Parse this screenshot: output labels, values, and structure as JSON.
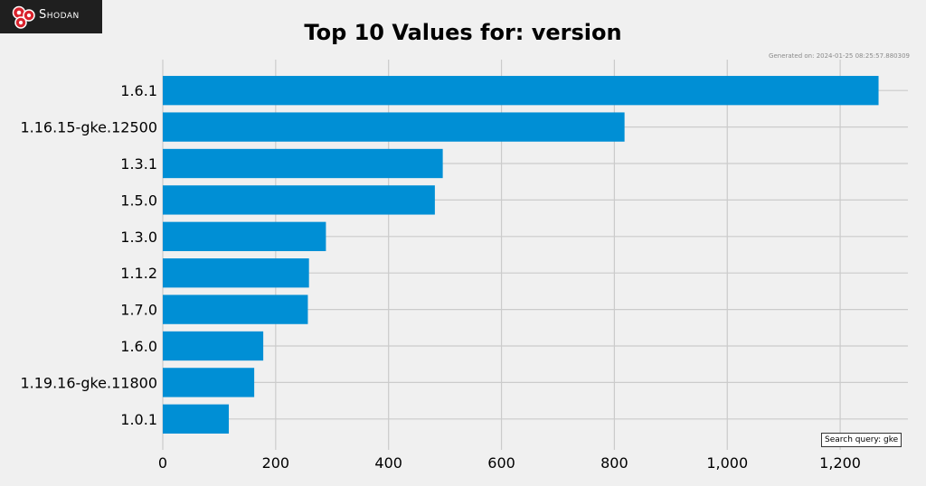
{
  "brand": {
    "name": "Shodan",
    "logo_icon": "shodan-logo-icon"
  },
  "generated_text": "Generated on: 2024-01-25 08:25:57.880309",
  "search_query_text": "Search query: gke",
  "colors": {
    "bar": "#008fd5",
    "background": "#f0f0f0",
    "grid": "#cbcbcb",
    "logo_bg": "#1f1f1f",
    "logo_red": "#d9232d"
  },
  "chart_data": {
    "type": "bar",
    "orientation": "horizontal",
    "title": "Top 10 Values for: version",
    "xlabel": "",
    "ylabel": "",
    "categories": [
      "1.6.1",
      "1.16.15-gke.12500",
      "1.3.1",
      "1.5.0",
      "1.3.0",
      "1.1.2",
      "1.7.0",
      "1.6.0",
      "1.19.16-gke.11800",
      "1.0.1"
    ],
    "values": [
      1268,
      818,
      496,
      482,
      289,
      259,
      257,
      178,
      162,
      117
    ],
    "xlim": [
      0,
      1320
    ],
    "xticks": [
      0,
      200,
      400,
      600,
      800,
      1000,
      1200
    ],
    "xtick_labels": [
      "0",
      "200",
      "400",
      "600",
      "800",
      "1,000",
      "1,200"
    ],
    "grid": true
  }
}
